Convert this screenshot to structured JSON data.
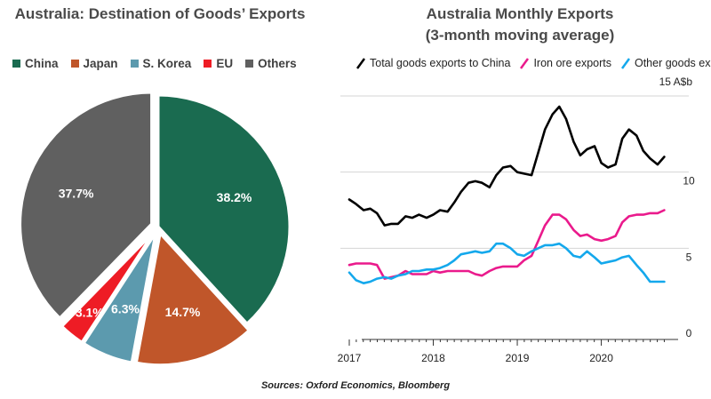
{
  "source": "Sources: Oxford Economics, Bloomberg",
  "colors": {
    "china": "#1a6b50",
    "japan": "#c0562a",
    "skorea": "#5c9aae",
    "eu": "#ee1c25",
    "others": "#606060",
    "total": "#000000",
    "iron": "#ea1a8c",
    "other_goods": "#14a8ec"
  },
  "chart_data": [
    {
      "type": "pie",
      "title": "Australia: Destination of Goods’ Exports",
      "legend_position": "top",
      "slices": [
        {
          "label": "China",
          "value": 38.2,
          "value_label": "38.2%",
          "color": "#1a6b50",
          "exploded": false
        },
        {
          "label": "Japan",
          "value": 14.7,
          "value_label": "14.7%",
          "color": "#c0562a",
          "exploded": true
        },
        {
          "label": "S. Korea",
          "value": 6.3,
          "value_label": "6.3%",
          "color": "#5c9aae",
          "exploded": true
        },
        {
          "label": "EU",
          "value": 3.1,
          "value_label": "3.1%",
          "color": "#ee1c25",
          "exploded": true
        },
        {
          "label": "Others",
          "value": 37.7,
          "value_label": "37.7%",
          "color": "#606060",
          "exploded": true
        }
      ]
    },
    {
      "type": "line",
      "title": "Australia Monthly Exports",
      "subtitle": "(3-month moving average)",
      "legend_position": "top",
      "y_unit_label": "15 A$b",
      "y_ticks": [
        "",
        "10",
        "5",
        "0"
      ],
      "ylim": [
        0,
        15
      ],
      "xlim": [
        2017.0,
        2020.83
      ],
      "x_ticks": [
        "2017",
        "2018",
        "2019",
        "2020"
      ],
      "grid": "horizontal",
      "series": [
        {
          "name": "Total goods exports to China",
          "color": "#000000",
          "x": [
            2017.0,
            2017.08,
            2017.17,
            2017.25,
            2017.33,
            2017.42,
            2017.5,
            2017.58,
            2017.67,
            2017.75,
            2017.83,
            2017.92,
            2018.0,
            2018.08,
            2018.17,
            2018.25,
            2018.33,
            2018.42,
            2018.5,
            2018.58,
            2018.67,
            2018.75,
            2018.83,
            2018.92,
            2019.0,
            2019.08,
            2019.17,
            2019.25,
            2019.33,
            2019.42,
            2019.5,
            2019.58,
            2019.67,
            2019.75,
            2019.83,
            2019.92,
            2020.0,
            2020.08,
            2020.17,
            2020.25,
            2020.33,
            2020.42,
            2020.5,
            2020.58,
            2020.67,
            2020.75
          ],
          "y": [
            8.2,
            7.9,
            7.5,
            7.6,
            7.3,
            6.5,
            6.6,
            6.6,
            7.1,
            7.0,
            7.2,
            7.0,
            7.2,
            7.5,
            7.4,
            8.0,
            8.7,
            9.3,
            9.4,
            9.3,
            9.0,
            9.8,
            10.3,
            10.4,
            10.0,
            9.9,
            9.8,
            11.3,
            12.8,
            13.8,
            14.3,
            13.5,
            12.0,
            11.1,
            11.5,
            11.7,
            10.6,
            10.3,
            10.5,
            12.2,
            12.8,
            12.4,
            11.4,
            10.9,
            10.5,
            11.0
          ]
        },
        {
          "name": "Iron ore exports",
          "color": "#ea1a8c",
          "x": [
            2017.0,
            2017.08,
            2017.17,
            2017.25,
            2017.33,
            2017.42,
            2017.5,
            2017.58,
            2017.67,
            2017.75,
            2017.83,
            2017.92,
            2018.0,
            2018.08,
            2018.17,
            2018.25,
            2018.33,
            2018.42,
            2018.5,
            2018.58,
            2018.67,
            2018.75,
            2018.83,
            2018.92,
            2019.0,
            2019.08,
            2019.17,
            2019.25,
            2019.33,
            2019.42,
            2019.5,
            2019.58,
            2019.67,
            2019.75,
            2019.83,
            2019.92,
            2020.0,
            2020.08,
            2020.17,
            2020.25,
            2020.33,
            2020.42,
            2020.5,
            2020.58,
            2020.67,
            2020.75
          ],
          "y": [
            3.9,
            4.0,
            4.0,
            4.0,
            3.9,
            3.0,
            3.1,
            3.2,
            3.5,
            3.3,
            3.3,
            3.3,
            3.5,
            3.4,
            3.5,
            3.5,
            3.5,
            3.5,
            3.3,
            3.2,
            3.5,
            3.7,
            3.8,
            3.8,
            3.8,
            4.2,
            4.5,
            5.5,
            6.5,
            7.2,
            7.2,
            6.9,
            6.2,
            5.8,
            5.9,
            5.6,
            5.5,
            5.6,
            5.8,
            6.7,
            7.1,
            7.2,
            7.2,
            7.3,
            7.3,
            7.5
          ]
        },
        {
          "name": "Other goods exports",
          "color": "#14a8ec",
          "x": [
            2017.0,
            2017.08,
            2017.17,
            2017.25,
            2017.33,
            2017.42,
            2017.5,
            2017.58,
            2017.67,
            2017.75,
            2017.83,
            2017.92,
            2018.0,
            2018.08,
            2018.17,
            2018.25,
            2018.33,
            2018.42,
            2018.5,
            2018.58,
            2018.67,
            2018.75,
            2018.83,
            2018.92,
            2019.0,
            2019.08,
            2019.17,
            2019.25,
            2019.33,
            2019.42,
            2019.5,
            2019.58,
            2019.67,
            2019.75,
            2019.83,
            2019.92,
            2020.0,
            2020.08,
            2020.17,
            2020.25,
            2020.33,
            2020.42,
            2020.5,
            2020.58,
            2020.67,
            2020.75
          ],
          "y": [
            3.4,
            2.9,
            2.7,
            2.8,
            3.0,
            3.1,
            3.0,
            3.2,
            3.3,
            3.5,
            3.5,
            3.6,
            3.6,
            3.7,
            3.9,
            4.2,
            4.6,
            4.7,
            4.8,
            4.7,
            4.8,
            5.3,
            5.3,
            5.0,
            4.6,
            4.5,
            4.8,
            5.0,
            5.2,
            5.2,
            5.3,
            5.0,
            4.5,
            4.4,
            4.8,
            4.4,
            4.0,
            4.1,
            4.2,
            4.4,
            4.5,
            3.9,
            3.4,
            2.8,
            2.8,
            2.8
          ]
        }
      ]
    }
  ]
}
